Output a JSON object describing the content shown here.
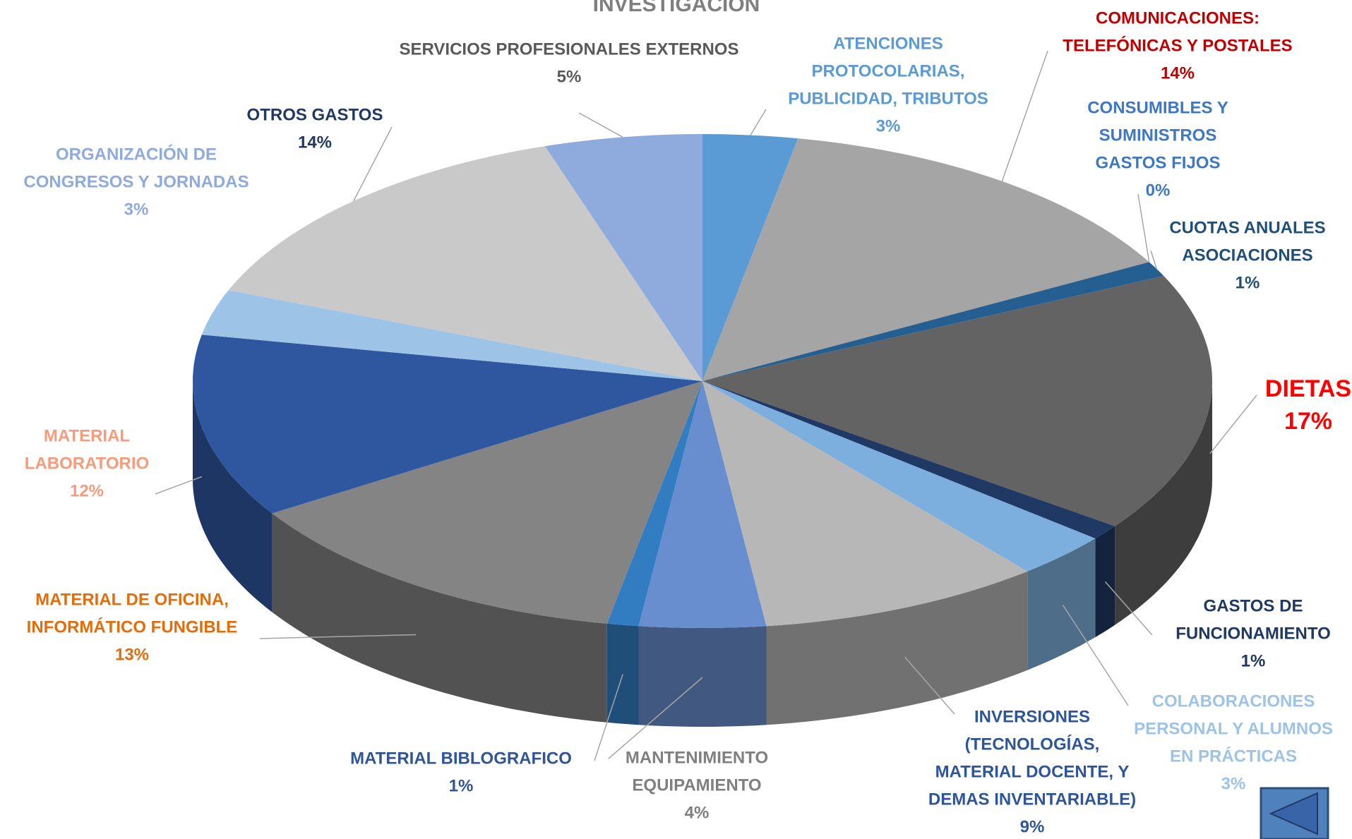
{
  "chart_data": {
    "type": "pie3d",
    "title": "INVESTIGACIÓN",
    "categories": [
      [
        "ATENCIONES",
        "PROTOCOLARIAS,",
        "PUBLICIDAD, TRIBUTOS"
      ],
      [
        "COMUNICACIONES:",
        "TELEFÓNICAS Y POSTALES"
      ],
      [
        "CONSUMIBLES Y",
        "SUMINISTROS",
        "GASTOS FIJOS"
      ],
      [
        "CUOTAS ANUALES",
        "ASOCIACIONES"
      ],
      [
        "DIETAS"
      ],
      [
        "GASTOS DE",
        "FUNCIONAMIENTO"
      ],
      [
        "COLABORACIONES",
        "PERSONAL Y ALUMNOS",
        "EN PRÁCTICAS"
      ],
      [
        "INVERSIONES",
        "(TECNOLOGÍAS,",
        "MATERIAL DOCENTE, Y",
        "DEMAS INVENTARIABLE)"
      ],
      [
        "MANTENIMIENTO",
        "EQUIPAMIENTO"
      ],
      [
        "MATERIAL BIBLOGRAFICO"
      ],
      [
        "MATERIAL DE OFICINA,",
        "INFORMÁTICO FUNGIBLE"
      ],
      [
        "MATERIAL",
        "LABORATORIO"
      ],
      [
        "ORGANIZACIÓN DE",
        "CONGRESOS Y JORNADAS"
      ],
      [
        "OTROS GASTOS"
      ],
      [
        "SERVICIOS PROFESIONALES EXTERNOS"
      ]
    ],
    "values": [
      3,
      14,
      0,
      1,
      17,
      1,
      3,
      9,
      4,
      1,
      13,
      12,
      3,
      14,
      5
    ],
    "value_labels": [
      "3%",
      "14%",
      "0%",
      "1%",
      "17%",
      "1%",
      "3%",
      "9%",
      "4%",
      "1%",
      "13%",
      "12%",
      "3%",
      "14%",
      "5%"
    ],
    "colors": [
      "#5b9bd5",
      "#a5a5a5",
      "#264478",
      "#255e91",
      "#636363",
      "#1f3864",
      "#7cafdd",
      "#b7b7b7",
      "#698ed0",
      "#327dc2",
      "#848484",
      "#2e579f",
      "#9dc3e6",
      "#c9c9c9",
      "#8faadc"
    ],
    "label_colors": [
      "#5b9bd5",
      "#c00000",
      "#3e78c2",
      "#1f4e79",
      "#ff0000",
      "#1f3864",
      "#9dc3e6",
      "#2e5597",
      "#7f7f7f",
      "#2f5597",
      "#e46c0a",
      "#f79b7a",
      "#8faadc",
      "#1f3864",
      "#595959"
    ]
  }
}
